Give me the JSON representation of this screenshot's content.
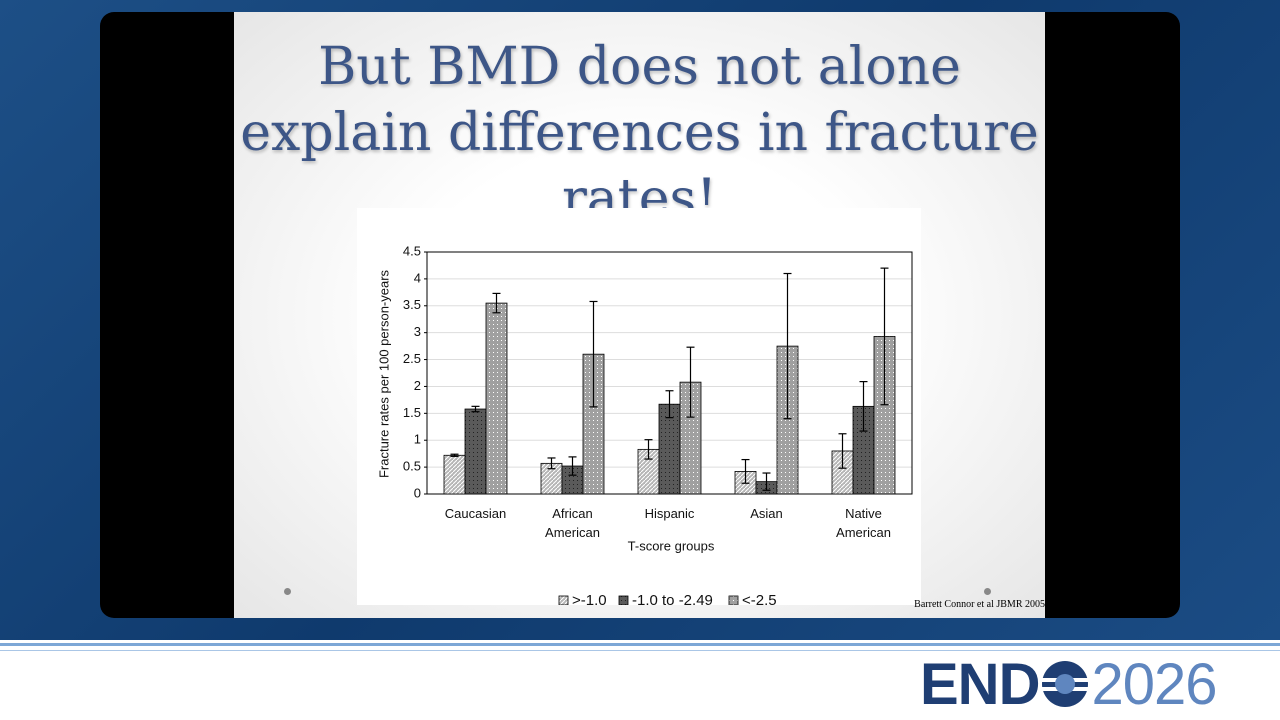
{
  "slide_title": "But BMD does not alone explain differences in fracture rates!",
  "citation": "Barrett Connor et al JBMR 2005",
  "logo": {
    "left": "END",
    "right": "2026"
  },
  "chart_data": {
    "type": "bar",
    "ylabel": "Fracture rates per 100 person-years",
    "xlabel": "T-score groups",
    "categories": [
      "Caucasian",
      "African American",
      "Hispanic",
      "Asian",
      "Native American"
    ],
    "series": [
      {
        "name": ">-1.0",
        "color": "#b5b5b5",
        "values": [
          0.72,
          0.57,
          0.83,
          0.42,
          0.8
        ],
        "errors": [
          0.02,
          0.1,
          0.18,
          0.22,
          0.32
        ]
      },
      {
        "name": "-1.0 to -2.49",
        "color": "#5a5a5a",
        "values": [
          1.58,
          0.52,
          1.67,
          0.23,
          1.63
        ],
        "errors": [
          0.05,
          0.17,
          0.25,
          0.16,
          0.46
        ]
      },
      {
        "name": "<-2.5",
        "color": "#a0a0a0",
        "values": [
          3.55,
          2.6,
          2.08,
          2.75,
          2.93
        ],
        "errors": [
          0.18,
          0.98,
          0.65,
          1.35,
          1.27
        ]
      }
    ],
    "ylim": [
      0,
      4.5
    ],
    "yticks": [
      0,
      0.5,
      1,
      1.5,
      2,
      2.5,
      3,
      3.5,
      4,
      4.5
    ],
    "grid": true,
    "legend": "bottom"
  }
}
